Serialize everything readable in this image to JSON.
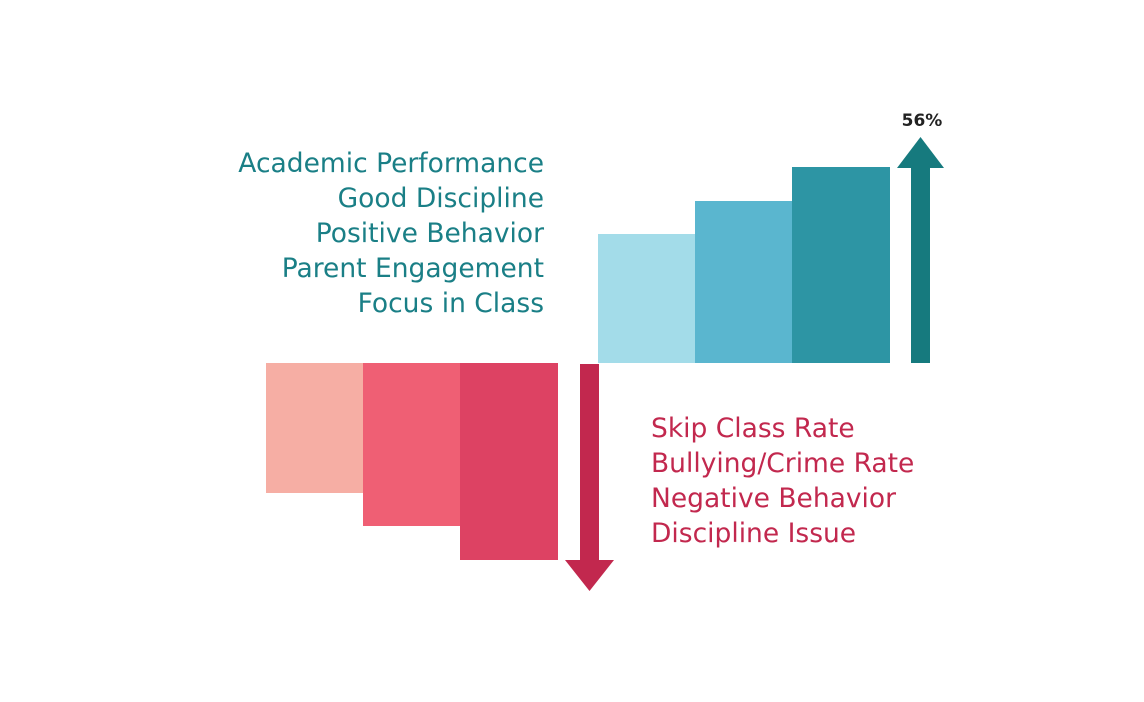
{
  "positive": {
    "items": [
      "Academic Performance",
      "Good Discipline",
      "Positive Behavior",
      "Parent Engagement",
      "Focus in Class"
    ],
    "steps": [
      {
        "level": 1,
        "color": "#a3dce9"
      },
      {
        "level": 2,
        "color": "#5ab6cf"
      },
      {
        "level": 3,
        "color": "#2d95a4"
      }
    ],
    "arrow_color": "#167a7e",
    "change_label": "56%"
  },
  "negative": {
    "items": [
      "Skip Class Rate",
      "Bullying/Crime Rate",
      "Negative Behavior",
      "Discipline Issue"
    ],
    "steps": [
      {
        "level": 1,
        "color": "#f6aea4"
      },
      {
        "level": 2,
        "color": "#ef5f74"
      },
      {
        "level": 3,
        "color": "#dd4263"
      }
    ],
    "arrow_color": "#c2284e"
  }
}
